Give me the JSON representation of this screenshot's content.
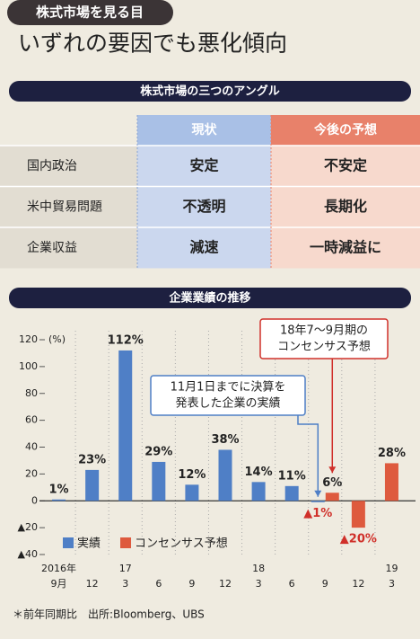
{
  "header": {
    "tag": "株式市場を見る目",
    "title": "いずれの要因でも悪化傾向"
  },
  "table": {
    "title": "株式市場の三つのアングル",
    "columns": [
      "現状",
      "今後の予想"
    ],
    "rows": [
      [
        "国内政治",
        "安定",
        "不安定"
      ],
      [
        "米中貿易問題",
        "不透明",
        "長期化"
      ],
      [
        "企業収益",
        "減速",
        "一時減益に"
      ]
    ]
  },
  "chart_data": {
    "type": "bar",
    "title": "企業業績の推移",
    "y_unit": "(%)",
    "categories": [
      "9月",
      "12",
      "3",
      "6",
      "9",
      "12",
      "3",
      "6",
      "9",
      "12",
      "3"
    ],
    "category_years": [
      "2016年",
      null,
      "17",
      null,
      null,
      null,
      "18",
      null,
      null,
      null,
      "19"
    ],
    "series": [
      {
        "name": "実績",
        "color": "#4f7fc6",
        "values": [
          1,
          23,
          112,
          29,
          12,
          38,
          14,
          11,
          -1,
          null,
          null
        ],
        "value_labels": [
          "1%",
          "23%",
          "112%",
          "29%",
          "12%",
          "38%",
          "14%",
          "11%",
          "▲1%",
          null,
          null
        ]
      },
      {
        "name": "コンセンサス予想",
        "color": "#de5a3e",
        "values": [
          null,
          null,
          null,
          null,
          null,
          null,
          null,
          null,
          6,
          -20,
          28
        ],
        "value_labels": [
          null,
          null,
          null,
          null,
          null,
          null,
          null,
          null,
          "6%",
          "▲20%",
          "28%"
        ]
      }
    ],
    "ylim": [
      -40,
      120
    ],
    "yticks": [
      {
        "value": -40,
        "label": "▲40"
      },
      {
        "value": -20,
        "label": "▲20"
      },
      0,
      20,
      40,
      60,
      80,
      100,
      120
    ],
    "legend": "lower left",
    "annotations": [
      {
        "lines": [
          "11月1日までに決算を",
          "発表した企業の実績"
        ],
        "series": 0,
        "index": 8,
        "color": "#4f7fc6"
      },
      {
        "lines": [
          "18年7～9月期の",
          "コンセンサス予想"
        ],
        "series": 1,
        "index": 8,
        "color": "#d0302a"
      }
    ],
    "footnote": "＊前年同期比　出所:Bloomberg、UBS"
  }
}
